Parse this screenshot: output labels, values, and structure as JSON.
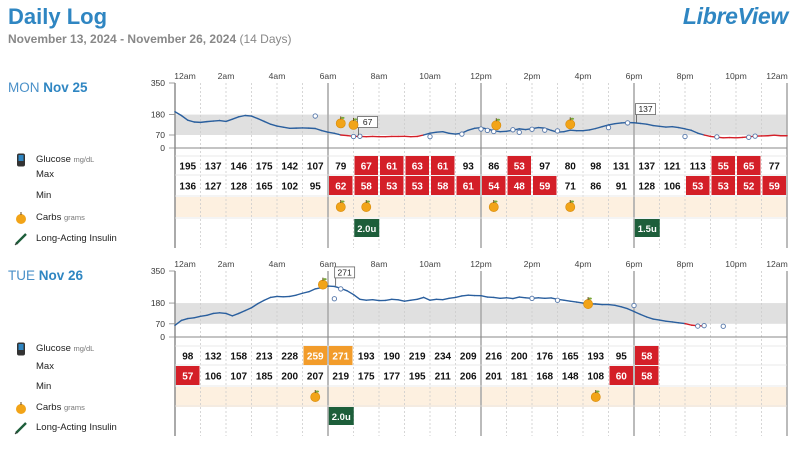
{
  "header": {
    "title": "Daily Log",
    "date_range": "November 13, 2024 - November 26, 2024",
    "days_note": "(14 Days)",
    "logo": "LibreView"
  },
  "legend": {
    "glucose": "Glucose",
    "glucose_unit": "mg/dL",
    "max": "Max",
    "min": "Min",
    "carbs": "Carbs",
    "carbs_unit": "grams",
    "insulin": "Long-Acting Insulin"
  },
  "time_labels": [
    "12am",
    "2am",
    "4am",
    "6am",
    "8am",
    "10am",
    "12pm",
    "2pm",
    "4pm",
    "6pm",
    "8pm",
    "10pm",
    "12am"
  ],
  "y_ticks": [
    "350",
    "180",
    "70",
    "0"
  ],
  "colors": {
    "accent": "#2f86c2",
    "high_cell": "#d41f28",
    "warn_cell": "#f29c2b",
    "insulin_cell": "#1d5e3a",
    "target_band": "#e0e0e0",
    "carbs_row": "#fdf0e0",
    "low_line": "#d41f28",
    "glucose_line": "#2a5f9e"
  },
  "days": [
    {
      "day_name": "MON",
      "date": "Nov 25",
      "annotations": [
        {
          "hour": 7.2,
          "value": 67,
          "label": "67"
        },
        {
          "hour": 18.1,
          "value": 137,
          "label": "137"
        }
      ],
      "max": [
        "195",
        "137",
        "146",
        "175",
        "142",
        "107",
        "79",
        "67",
        "61",
        "63",
        "61",
        "93",
        "86",
        "53",
        "97",
        "80",
        "98",
        "131",
        "137",
        "121",
        "113",
        "55",
        "65",
        "77"
      ],
      "max_status": [
        "",
        "",
        "",
        "",
        "",
        "",
        "",
        "high",
        "high",
        "high",
        "high",
        "",
        "",
        "high",
        "",
        "",
        "",
        "",
        "",
        "",
        "",
        "high",
        "high",
        ""
      ],
      "min": [
        "136",
        "127",
        "128",
        "165",
        "102",
        "95",
        "62",
        "58",
        "53",
        "53",
        "58",
        "61",
        "54",
        "48",
        "59",
        "71",
        "86",
        "91",
        "128",
        "106",
        "53",
        "53",
        "52",
        "59"
      ],
      "min_status": [
        "",
        "",
        "",
        "",
        "",
        "",
        "high",
        "high",
        "high",
        "high",
        "high",
        "high",
        "high",
        "high",
        "high",
        "",
        "",
        "",
        "",
        "",
        "high",
        "high",
        "high",
        "high"
      ],
      "carbs_hours": [
        6.5,
        7.5,
        12.5,
        15.5
      ],
      "insulin": [
        {
          "hour": 7.5,
          "label": "2.0u"
        },
        {
          "hour": 18.5,
          "label": "1.5u"
        }
      ],
      "glucose": [
        [
          0,
          195
        ],
        [
          0.5,
          175
        ],
        [
          1,
          150
        ],
        [
          1.5,
          140
        ],
        [
          2,
          138
        ],
        [
          2.5,
          142
        ],
        [
          3,
          145
        ],
        [
          3.5,
          148
        ],
        [
          4,
          143
        ],
        [
          4.5,
          155
        ],
        [
          5,
          168
        ],
        [
          5.5,
          175
        ],
        [
          6,
          172
        ],
        [
          6.5,
          158
        ],
        [
          7,
          143
        ],
        [
          7.5,
          128
        ],
        [
          8,
          118
        ],
        [
          8.5,
          112
        ],
        [
          9,
          106
        ],
        [
          9.5,
          107
        ],
        [
          10,
          108
        ],
        [
          10.5,
          107
        ],
        [
          11,
          105
        ],
        [
          11.5,
          94
        ],
        [
          12,
          85
        ],
        [
          12.5,
          79
        ],
        [
          12.8,
          74
        ],
        [
          13,
          70
        ],
        [
          13.5,
          67
        ],
        [
          14,
          63
        ],
        [
          14.5,
          62
        ],
        [
          15,
          61
        ],
        [
          15.5,
          62
        ],
        [
          16,
          61
        ],
        [
          16.5,
          61
        ],
        [
          17,
          62
        ],
        [
          17.5,
          62
        ],
        [
          18,
          63
        ],
        [
          18.5,
          61
        ],
        [
          19,
          62
        ],
        [
          19.5,
          70
        ],
        [
          20,
          80
        ],
        [
          20.5,
          85
        ],
        [
          21,
          88
        ],
        [
          21.5,
          79
        ],
        [
          22,
          75
        ],
        [
          22.5,
          80
        ],
        [
          23,
          96
        ],
        [
          23.5,
          106
        ],
        [
          24,
          110
        ],
        [
          24.5,
          102
        ],
        [
          25,
          93
        ],
        [
          25.5,
          88
        ],
        [
          26,
          90
        ],
        [
          26.5,
          96
        ],
        [
          27,
          103
        ],
        [
          27.5,
          99
        ],
        [
          28,
          104
        ],
        [
          28.5,
          110
        ],
        [
          29,
          107
        ],
        [
          29.5,
          95
        ],
        [
          30,
          85
        ],
        [
          30.5,
          88
        ],
        [
          31,
          96
        ],
        [
          31.5,
          93
        ],
        [
          32,
          93
        ],
        [
          32.5,
          97
        ],
        [
          33,
          105
        ],
        [
          33.5,
          115
        ],
        [
          34,
          124
        ],
        [
          34.5,
          131
        ],
        [
          35,
          135
        ],
        [
          35.5,
          137
        ],
        [
          36,
          136
        ],
        [
          36.5,
          132
        ],
        [
          37,
          128
        ],
        [
          37.5,
          121
        ],
        [
          38,
          117
        ],
        [
          38.5,
          113
        ],
        [
          39,
          115
        ],
        [
          39.5,
          110
        ],
        [
          40,
          103
        ],
        [
          40.5,
          95
        ],
        [
          41,
          80
        ],
        [
          41.5,
          70
        ],
        [
          42,
          62
        ],
        [
          42.5,
          58
        ],
        [
          43,
          55
        ],
        [
          43.5,
          56
        ],
        [
          44,
          55
        ],
        [
          44.5,
          57
        ],
        [
          45,
          60
        ],
        [
          45.5,
          64
        ],
        [
          46,
          65
        ],
        [
          46.5,
          66
        ],
        [
          47,
          69
        ],
        [
          47.5,
          66
        ],
        [
          48,
          66
        ]
      ],
      "markers": [
        [
          11,
          172
        ],
        [
          14,
          62
        ],
        [
          14.5,
          63
        ],
        [
          20,
          61
        ],
        [
          22.5,
          75
        ],
        [
          24,
          102
        ],
        [
          24.5,
          95
        ],
        [
          25,
          89
        ],
        [
          26.5,
          98
        ],
        [
          27,
          85
        ],
        [
          28,
          101
        ],
        [
          29,
          96
        ],
        [
          30,
          92
        ],
        [
          34,
          110
        ],
        [
          35.5,
          135
        ],
        [
          40,
          62
        ],
        [
          42.5,
          60
        ],
        [
          45,
          58
        ],
        [
          45.5,
          64
        ]
      ]
    },
    {
      "day_name": "TUE",
      "date": "Nov 26",
      "annotations": [
        {
          "hour": 6.3,
          "value": 271,
          "label": "271"
        }
      ],
      "max": [
        "98",
        "132",
        "158",
        "213",
        "228",
        "259",
        "271",
        "193",
        "190",
        "219",
        "234",
        "209",
        "216",
        "200",
        "176",
        "165",
        "193",
        "95",
        "58",
        "",
        "",
        "",
        "",
        ""
      ],
      "max_status": [
        "",
        "",
        "",
        "",
        "",
        "warn",
        "warn",
        "",
        "",
        "",
        "",
        "",
        "",
        "",
        "",
        "",
        "",
        "",
        "high",
        "",
        "",
        "",
        "",
        ""
      ],
      "min": [
        "57",
        "106",
        "107",
        "185",
        "200",
        "207",
        "219",
        "175",
        "177",
        "195",
        "211",
        "206",
        "201",
        "181",
        "168",
        "148",
        "108",
        "60",
        "58",
        "",
        "",
        "",
        "",
        ""
      ],
      "min_status": [
        "high",
        "",
        "",
        "",
        "",
        "",
        "",
        "",
        "",
        "",
        "",
        "",
        "",
        "",
        "",
        "",
        "",
        "high",
        "high",
        "",
        "",
        "",
        "",
        ""
      ],
      "carbs_hours": [
        5.5,
        16.5
      ],
      "insulin": [
        {
          "hour": 6.5,
          "label": "2.0u"
        }
      ],
      "glucose": [
        [
          0,
          62
        ],
        [
          0.5,
          88
        ],
        [
          1,
          98
        ],
        [
          1.5,
          102
        ],
        [
          2,
          110
        ],
        [
          2.5,
          115
        ],
        [
          3,
          125
        ],
        [
          3.5,
          128
        ],
        [
          4,
          125
        ],
        [
          4.5,
          112
        ],
        [
          5,
          125
        ],
        [
          5.5,
          140
        ],
        [
          6,
          155
        ],
        [
          6.5,
          177
        ],
        [
          7,
          195
        ],
        [
          7.5,
          210
        ],
        [
          8,
          215
        ],
        [
          8.5,
          213
        ],
        [
          9,
          215
        ],
        [
          9.5,
          222
        ],
        [
          10,
          232
        ],
        [
          10.5,
          240
        ],
        [
          11,
          255
        ],
        [
          11.5,
          262
        ],
        [
          12,
          270
        ],
        [
          12.5,
          268
        ],
        [
          13,
          258
        ],
        [
          13.5,
          245
        ],
        [
          14,
          225
        ],
        [
          14.5,
          200
        ],
        [
          15,
          195
        ],
        [
          15.5,
          198
        ],
        [
          16,
          193
        ],
        [
          16.5,
          194
        ],
        [
          17,
          200
        ],
        [
          17.5,
          197
        ],
        [
          18,
          190
        ],
        [
          18.5,
          195
        ],
        [
          19,
          200
        ],
        [
          19.5,
          210
        ],
        [
          20,
          195
        ],
        [
          20.5,
          200
        ],
        [
          21,
          198
        ],
        [
          21.5,
          205
        ],
        [
          22,
          210
        ],
        [
          22.5,
          218
        ],
        [
          23,
          222
        ],
        [
          23.5,
          220
        ],
        [
          24,
          219
        ],
        [
          24.5,
          212
        ],
        [
          25,
          210
        ],
        [
          25.5,
          205
        ],
        [
          26,
          208
        ],
        [
          26.5,
          204
        ],
        [
          27,
          212
        ],
        [
          27.5,
          208
        ],
        [
          28,
          205
        ],
        [
          28.5,
          208
        ],
        [
          29,
          205
        ],
        [
          29.5,
          207
        ],
        [
          30,
          200
        ],
        [
          30.5,
          195
        ],
        [
          31,
          190
        ],
        [
          31.5,
          185
        ],
        [
          32,
          180
        ],
        [
          32.5,
          176
        ],
        [
          33,
          175
        ],
        [
          33.5,
          172
        ],
        [
          34,
          172
        ],
        [
          34.5,
          168
        ],
        [
          35,
          160
        ],
        [
          35.5,
          150
        ],
        [
          36,
          135
        ],
        [
          36.5,
          120
        ],
        [
          37,
          106
        ],
        [
          37.5,
          95
        ],
        [
          38,
          90
        ],
        [
          38.5,
          84
        ],
        [
          39,
          80
        ],
        [
          39.5,
          75
        ],
        [
          40,
          71
        ],
        [
          40.5,
          63
        ],
        [
          41,
          60
        ],
        [
          41.5,
          58
        ]
      ],
      "markers": [
        [
          12.5,
          203
        ],
        [
          13,
          255
        ],
        [
          28,
          205
        ],
        [
          30,
          195
        ],
        [
          36,
          167
        ],
        [
          41,
          58
        ],
        [
          41.5,
          60
        ],
        [
          43,
          57
        ]
      ]
    }
  ]
}
